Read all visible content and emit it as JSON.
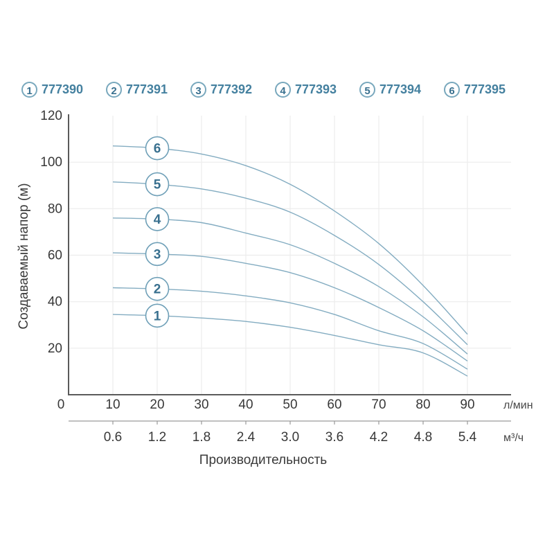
{
  "legend": {
    "items": [
      {
        "num": "1",
        "code": "777390"
      },
      {
        "num": "2",
        "code": "777391"
      },
      {
        "num": "3",
        "code": "777392"
      },
      {
        "num": "4",
        "code": "777393"
      },
      {
        "num": "5",
        "code": "777394"
      },
      {
        "num": "6",
        "code": "777395"
      }
    ]
  },
  "chart_data": {
    "type": "line",
    "title": "",
    "xlabel": "Производительность",
    "ylabel": "Создаваемый напор (м)",
    "x_unit_primary": "л/мин",
    "x_unit_secondary": "м³/ч",
    "xlim": [
      0,
      100
    ],
    "ylim": [
      0,
      120
    ],
    "grid": true,
    "legend_position": "top",
    "origin_label": "0",
    "x": [
      10,
      20,
      30,
      40,
      50,
      60,
      70,
      80,
      90
    ],
    "x_ticks_primary": [
      0,
      10,
      20,
      30,
      40,
      50,
      60,
      70,
      80,
      90
    ],
    "x_ticks_secondary": [
      "0.6",
      "1.2",
      "1.8",
      "2.4",
      "3.0",
      "3.6",
      "4.2",
      "4.8",
      "5.4"
    ],
    "y_ticks": [
      20,
      40,
      60,
      80,
      100,
      120
    ],
    "marker_x": 20,
    "series": [
      {
        "name": "1",
        "code": "777390",
        "values": [
          34.5,
          34,
          33,
          31.5,
          29,
          25.5,
          21.5,
          18,
          8
        ]
      },
      {
        "name": "2",
        "code": "777391",
        "values": [
          46,
          45.5,
          44.5,
          42.5,
          39.5,
          34.5,
          27.5,
          22,
          11
        ]
      },
      {
        "name": "3",
        "code": "777392",
        "values": [
          61,
          60.5,
          59.5,
          56.5,
          52.5,
          46,
          37.5,
          27.5,
          14.5
        ]
      },
      {
        "name": "4",
        "code": "777393",
        "values": [
          76,
          75.5,
          74,
          69.5,
          64.5,
          56.5,
          46.5,
          33.5,
          17.5
        ]
      },
      {
        "name": "5",
        "code": "777394",
        "values": [
          91.5,
          90.5,
          88.5,
          84.5,
          78.5,
          68.5,
          56,
          40,
          21.5
        ]
      },
      {
        "name": "6",
        "code": "777395",
        "values": [
          107,
          106,
          103.5,
          98.5,
          90.5,
          79,
          65,
          47,
          26
        ]
      }
    ],
    "colors": {
      "curve": "#83acc1",
      "grid": "#ececec",
      "axis": "#5a5a5a",
      "axis_secondary": "#9a9a9a",
      "tick_text": "#383838",
      "legend_text": "#44809f",
      "badge_border": "#6e9fb7",
      "badge_fill": "#ffffff",
      "badge_text": "#39708f"
    }
  }
}
